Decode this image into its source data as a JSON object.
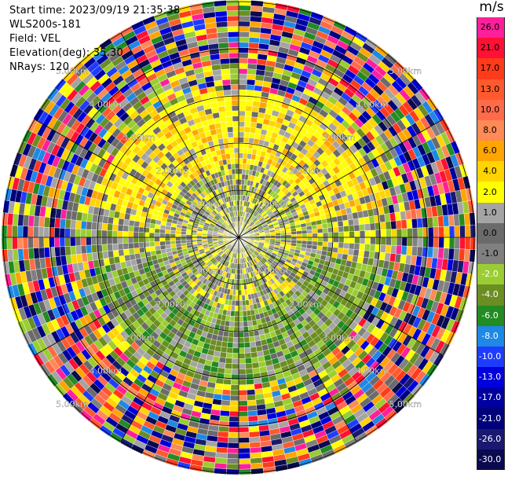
{
  "header": {
    "start_time": "Start time: 2023/09/19 21:35:38",
    "instrument": "WLS200s-181",
    "field": "Field: VEL",
    "elevation": "Elevation(deg): 35.30",
    "nrays": "NRays: 120"
  },
  "chart_data": {
    "type": "ppi",
    "field": "VEL",
    "units": "m/s",
    "nrays": 120,
    "ring_labels": [
      "1.00km",
      "2.00km",
      "3.00km",
      "4.00km",
      "5.00km"
    ],
    "spoke_angles_deg": [
      0,
      30,
      60,
      90,
      120,
      150,
      180,
      210,
      240,
      270,
      300,
      330
    ],
    "colorbar": {
      "title": "m/s",
      "levels": [
        {
          "label": "26.0",
          "color": "#ff1f9a"
        },
        {
          "label": "21.0",
          "color": "#ff1034"
        },
        {
          "label": "17.0",
          "color": "#ff3b1a"
        },
        {
          "label": "13.0",
          "color": "#ff5a2e"
        },
        {
          "label": "10.0",
          "color": "#ff6b4a"
        },
        {
          "label": "8.0",
          "color": "#ff8a55"
        },
        {
          "label": "6.0",
          "color": "#ffa500"
        },
        {
          "label": "4.0",
          "color": "#ffd400"
        },
        {
          "label": "2.0",
          "color": "#ffff00"
        },
        {
          "label": "1.0",
          "color": "#a4a4a4"
        },
        {
          "label": "0.0",
          "color": "#6b6b6b"
        },
        {
          "label": "-1.0",
          "color": "#808080"
        },
        {
          "label": "-2.0",
          "color": "#9acd32"
        },
        {
          "label": "-4.0",
          "color": "#6b8e23"
        },
        {
          "label": "-6.0",
          "color": "#228b22"
        },
        {
          "label": "-8.0",
          "color": "#1e88e5"
        },
        {
          "label": "-10.0",
          "color": "#1e3cff"
        },
        {
          "label": "-13.0",
          "color": "#0000dd"
        },
        {
          "label": "-17.0",
          "color": "#0000a0"
        },
        {
          "label": "-21.0",
          "color": "#00007a"
        },
        {
          "label": "-26.0",
          "color": "#191970"
        },
        {
          "label": "-30.0",
          "color": "#0a0a50"
        }
      ]
    }
  }
}
